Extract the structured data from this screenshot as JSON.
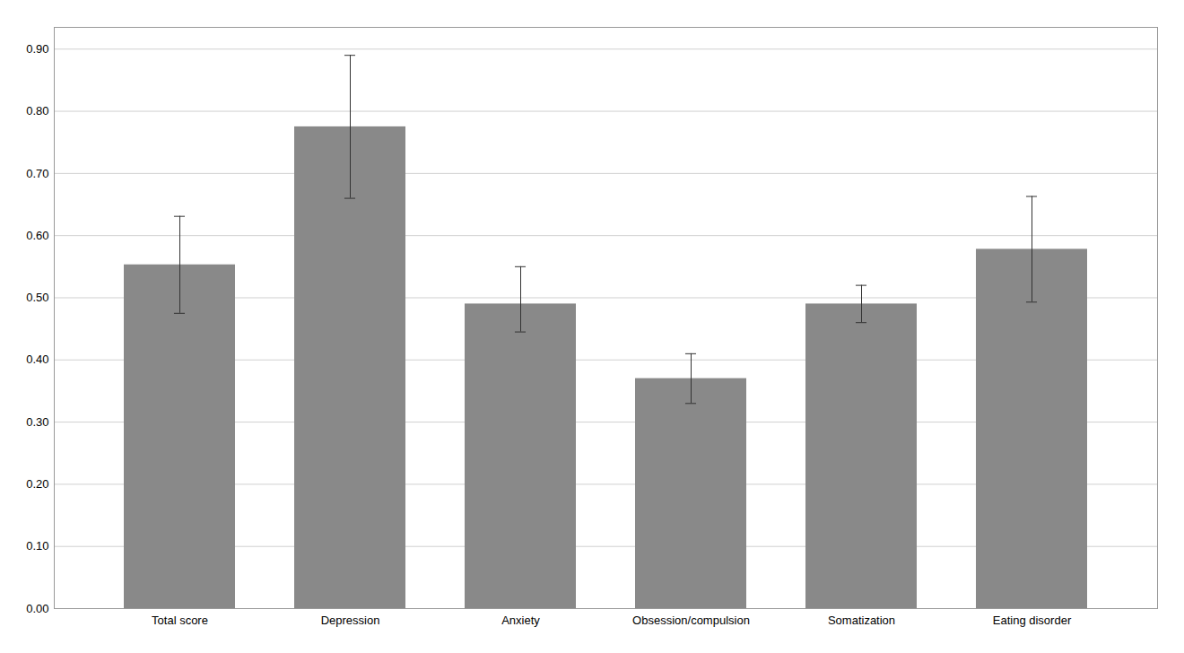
{
  "chart_data": {
    "type": "bar",
    "categories": [
      "Total score",
      "Depression",
      "Anxiety",
      "Obsession/compulsion",
      "Somatization",
      "Eating disorder"
    ],
    "values": [
      0.553,
      0.775,
      0.49,
      0.37,
      0.49,
      0.578
    ],
    "errors_upper": [
      0.078,
      0.115,
      0.06,
      0.04,
      0.03,
      0.085
    ],
    "errors_lower": [
      0.078,
      0.115,
      0.045,
      0.04,
      0.03,
      0.085
    ],
    "color": "#898989",
    "ylim": [
      0.0,
      0.935
    ],
    "yticks": [
      {
        "value": 0.0,
        "label": "0.00"
      },
      {
        "value": 0.1,
        "label": "0.10"
      },
      {
        "value": 0.2,
        "label": "0.20"
      },
      {
        "value": 0.3,
        "label": "0.30"
      },
      {
        "value": 0.4,
        "label": "0.40"
      },
      {
        "value": 0.5,
        "label": "0.50"
      },
      {
        "value": 0.6,
        "label": "0.60"
      },
      {
        "value": 0.7,
        "label": "0.70"
      },
      {
        "value": 0.8,
        "label": "0.80"
      },
      {
        "value": 0.9,
        "label": "0.90"
      }
    ],
    "grid": true
  }
}
